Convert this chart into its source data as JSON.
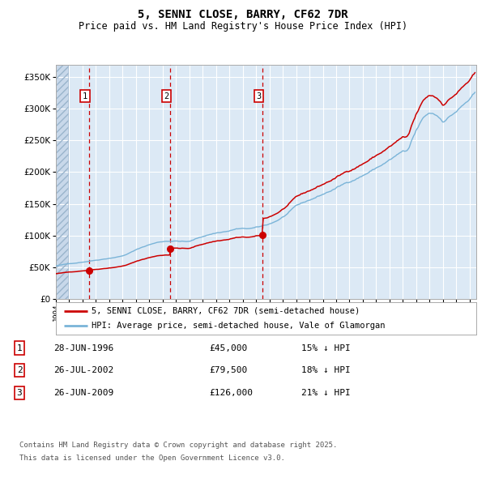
{
  "title": "5, SENNI CLOSE, BARRY, CF62 7DR",
  "subtitle": "Price paid vs. HM Land Registry's House Price Index (HPI)",
  "legend_line1": "5, SENNI CLOSE, BARRY, CF62 7DR (semi-detached house)",
  "legend_line2": "HPI: Average price, semi-detached house, Vale of Glamorgan",
  "footnote_line1": "Contains HM Land Registry data © Crown copyright and database right 2025.",
  "footnote_line2": "This data is licensed under the Open Government Licence v3.0.",
  "sales": [
    {
      "num": 1,
      "date_label": "28-JUN-1996",
      "price": 45000,
      "price_str": "£45,000",
      "pct": "15% ↓ HPI",
      "x_year": 1996.49
    },
    {
      "num": 2,
      "date_label": "26-JUL-2002",
      "price": 79500,
      "price_str": "£79,500",
      "pct": "18% ↓ HPI",
      "x_year": 2002.57
    },
    {
      "num": 3,
      "date_label": "26-JUN-2009",
      "price": 126000,
      "price_str": "£126,000",
      "pct": "21% ↓ HPI",
      "x_year": 2009.49
    }
  ],
  "hpi_line_color": "#7ab4d8",
  "price_line_color": "#cc0000",
  "dashed_line_color": "#cc0000",
  "background_plot": "#dce9f5",
  "grid_color": "#ffffff",
  "ylim": [
    0,
    370000
  ],
  "xlim_start": 1994.0,
  "xlim_end": 2025.5,
  "yticks": [
    0,
    50000,
    100000,
    150000,
    200000,
    250000,
    300000,
    350000
  ]
}
